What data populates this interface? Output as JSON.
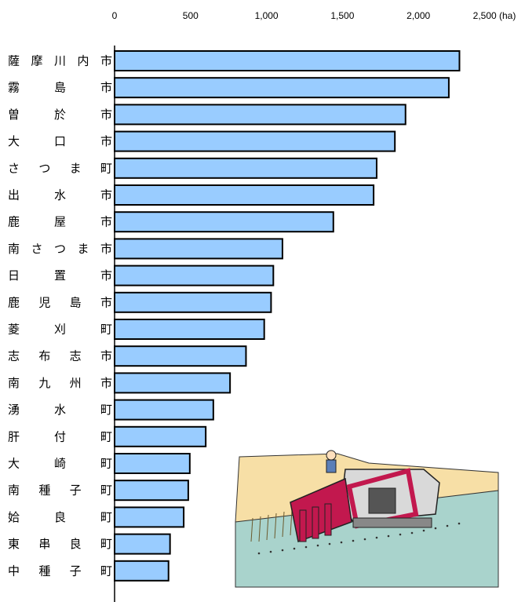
{
  "chart_data": {
    "type": "bar",
    "orientation": "horizontal",
    "unit_label": "(ha)",
    "xlim": [
      0,
      2500
    ],
    "ticks": [
      0,
      500,
      1000,
      1500,
      2000,
      2500
    ],
    "tick_labels": [
      "0",
      "500",
      "1,000",
      "1,500",
      "2,000",
      "2,500"
    ],
    "bar_color": "#99ccff",
    "grid": false,
    "categories": [
      "薩摩川内市",
      "霧島市",
      "曽於市",
      "大口市",
      "さつま町",
      "出水市",
      "鹿屋市",
      "南さつま市",
      "日置市",
      "鹿児島市",
      "菱刈町",
      "志布志市",
      "南九州市",
      "湧水町",
      "肝付町",
      "大崎町",
      "南種子町",
      "姶良町",
      "東串良町",
      "中種子町"
    ],
    "values": [
      2270,
      2200,
      1915,
      1845,
      1725,
      1705,
      1440,
      1105,
      1045,
      1030,
      985,
      865,
      760,
      650,
      600,
      495,
      485,
      455,
      365,
      355
    ]
  },
  "illustration": {
    "name": "rice-harvester-illustration"
  }
}
